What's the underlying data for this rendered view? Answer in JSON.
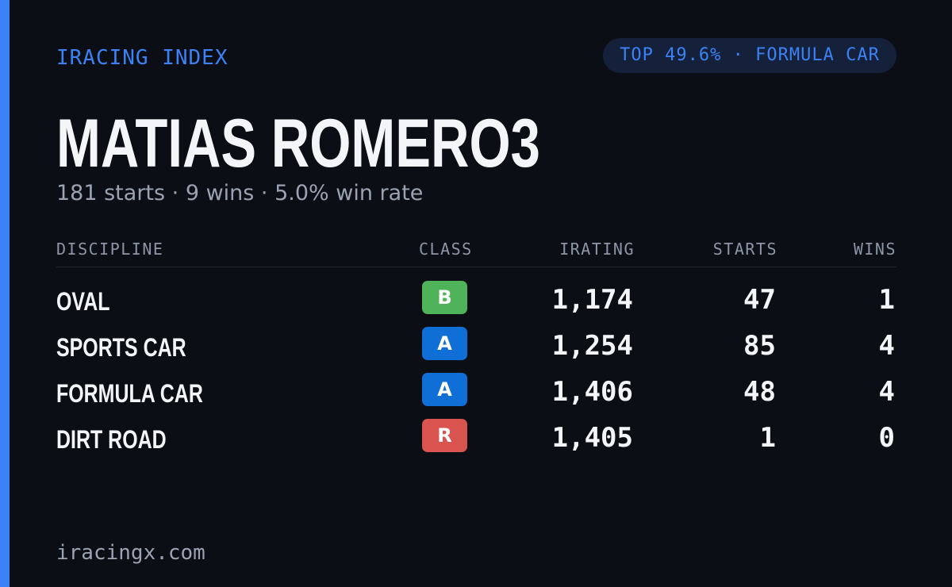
{
  "header": {
    "brand": "IRACING INDEX",
    "badge": "TOP 49.6% · FORMULA CAR"
  },
  "profile": {
    "name": "MATIAS ROMERO3",
    "summary": "181 starts · 9 wins · 5.0% win rate"
  },
  "table": {
    "columns": [
      "DISCIPLINE",
      "CLASS",
      "IRATING",
      "STARTS",
      "WINS"
    ],
    "rows": [
      {
        "discipline": "OVAL",
        "class": "B",
        "class_color": "#4fb35a",
        "irating": "1,174",
        "starts": "47",
        "wins": "1"
      },
      {
        "discipline": "SPORTS CAR",
        "class": "A",
        "class_color": "#0f6fd6",
        "irating": "1,254",
        "starts": "85",
        "wins": "4"
      },
      {
        "discipline": "FORMULA CAR",
        "class": "A",
        "class_color": "#0f6fd6",
        "irating": "1,406",
        "starts": "48",
        "wins": "4"
      },
      {
        "discipline": "DIRT ROAD",
        "class": "R",
        "class_color": "#d9534f",
        "irating": "1,405",
        "starts": "1",
        "wins": "0"
      }
    ]
  },
  "footer": {
    "site": "iracingx.com"
  }
}
